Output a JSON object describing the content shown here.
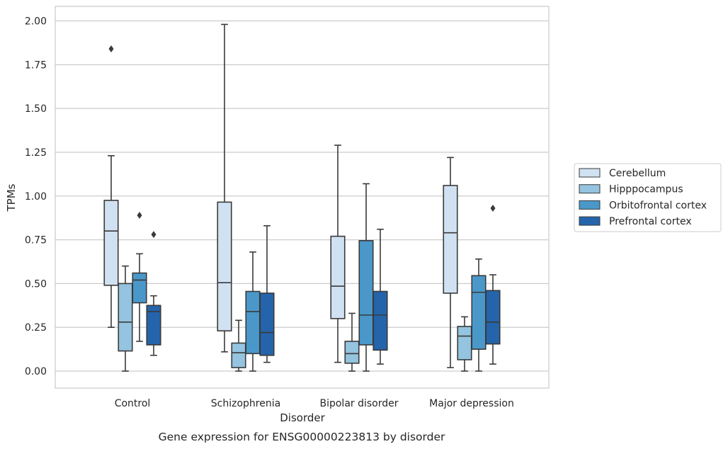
{
  "chart_data": {
    "type": "box",
    "title": "",
    "caption": "Gene expression for ENSG00000223813 by disorder",
    "xlabel": "Disorder",
    "ylabel": "TPMs",
    "ylim": [
      -0.1,
      2.08
    ],
    "yticks": [
      0.0,
      0.25,
      0.5,
      0.75,
      1.0,
      1.25,
      1.5,
      1.75,
      2.0
    ],
    "ytick_labels": [
      "0.00",
      "0.25",
      "0.50",
      "0.75",
      "1.00",
      "1.25",
      "1.50",
      "1.75",
      "2.00"
    ],
    "grid": "horizontal",
    "legend_position": "right",
    "categories": [
      "Control",
      "Schizophrenia",
      "Bipolar disorder",
      "Major depression"
    ],
    "series": [
      {
        "name": "Cerebellum",
        "color": "#d0e1f2",
        "boxes": [
          {
            "whislo": 0.25,
            "q1": 0.49,
            "med": 0.8,
            "q3": 0.975,
            "whishi": 1.23,
            "fliers": [
              1.84
            ]
          },
          {
            "whislo": 0.11,
            "q1": 0.23,
            "med": 0.505,
            "q3": 0.965,
            "whishi": 1.98,
            "fliers": []
          },
          {
            "whislo": 0.05,
            "q1": 0.3,
            "med": 0.485,
            "q3": 0.77,
            "whishi": 1.29,
            "fliers": []
          },
          {
            "whislo": 0.02,
            "q1": 0.445,
            "med": 0.79,
            "q3": 1.06,
            "whishi": 1.22,
            "fliers": []
          }
        ]
      },
      {
        "name": "Hipppocampus",
        "color": "#94c4df",
        "boxes": [
          {
            "whislo": 0.0,
            "q1": 0.115,
            "med": 0.28,
            "q3": 0.5,
            "whishi": 0.6,
            "fliers": []
          },
          {
            "whislo": 0.0,
            "q1": 0.02,
            "med": 0.105,
            "q3": 0.16,
            "whishi": 0.29,
            "fliers": []
          },
          {
            "whislo": 0.0,
            "q1": 0.045,
            "med": 0.1,
            "q3": 0.17,
            "whishi": 0.33,
            "fliers": []
          },
          {
            "whislo": 0.0,
            "q1": 0.065,
            "med": 0.2,
            "q3": 0.255,
            "whishi": 0.31,
            "fliers": []
          }
        ]
      },
      {
        "name": "Orbitofrontal cortex",
        "color": "#4a98c9",
        "boxes": [
          {
            "whislo": 0.17,
            "q1": 0.39,
            "med": 0.52,
            "q3": 0.56,
            "whishi": 0.67,
            "fliers": [
              0.89
            ]
          },
          {
            "whislo": 0.0,
            "q1": 0.1,
            "med": 0.34,
            "q3": 0.455,
            "whishi": 0.68,
            "fliers": []
          },
          {
            "whislo": 0.0,
            "q1": 0.15,
            "med": 0.32,
            "q3": 0.745,
            "whishi": 1.07,
            "fliers": []
          },
          {
            "whislo": 0.0,
            "q1": 0.125,
            "med": 0.45,
            "q3": 0.545,
            "whishi": 0.64,
            "fliers": []
          }
        ]
      },
      {
        "name": "Prefrontal cortex",
        "color": "#2464ab",
        "boxes": [
          {
            "whislo": 0.09,
            "q1": 0.15,
            "med": 0.34,
            "q3": 0.375,
            "whishi": 0.43,
            "fliers": [
              0.78
            ]
          },
          {
            "whislo": 0.05,
            "q1": 0.09,
            "med": 0.22,
            "q3": 0.445,
            "whishi": 0.83,
            "fliers": []
          },
          {
            "whislo": 0.04,
            "q1": 0.12,
            "med": 0.32,
            "q3": 0.455,
            "whishi": 0.81,
            "fliers": []
          },
          {
            "whislo": 0.04,
            "q1": 0.155,
            "med": 0.28,
            "q3": 0.46,
            "whishi": 0.55,
            "fliers": [
              0.93
            ]
          }
        ]
      }
    ]
  }
}
